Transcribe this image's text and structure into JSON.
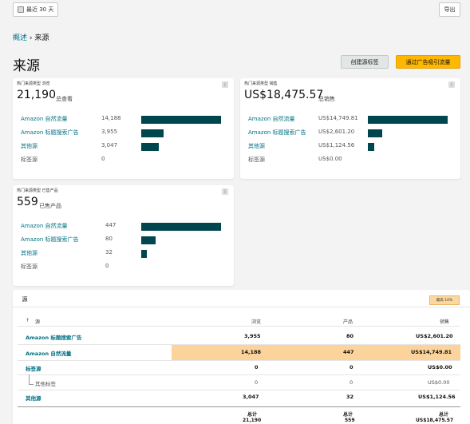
{
  "toolbar": {
    "date_range": "最近 30 天",
    "export": "导出"
  },
  "breadcrumb": {
    "parent": "概述",
    "separator": " › ",
    "current": "来源"
  },
  "page": {
    "title": "来源",
    "create_tag_button": "创建源标签",
    "ad_button": "通过广告吸引流量"
  },
  "card_views": {
    "label": "热门来源类型 浏览",
    "total": "21,190",
    "total_unit": "总查看",
    "rows": [
      {
        "label": "Amazon 自然流量",
        "value": "14,188",
        "fraction": 1.0
      },
      {
        "label": "Amazon 标题搜索广告",
        "value": "3,955",
        "fraction": 0.279
      },
      {
        "label": "其他源",
        "value": "3,047",
        "fraction": 0.215
      },
      {
        "label": "标签源",
        "value": "0",
        "fraction": 0
      }
    ]
  },
  "card_sales": {
    "label": "热门来源类型 销售",
    "total": "US$18,475.57",
    "total_unit": "总销售",
    "rows": [
      {
        "label": "Amazon 自然流量",
        "value": "US$14,749.81",
        "fraction": 1.0
      },
      {
        "label": "Amazon 标题搜索广告",
        "value": "US$2,601.20",
        "fraction": 0.176
      },
      {
        "label": "其他源",
        "value": "US$1,124.56",
        "fraction": 0.076
      },
      {
        "label": "标签源",
        "value": "US$0.00",
        "fraction": 0
      }
    ]
  },
  "card_products": {
    "label": "热门来源类型 已售产品",
    "total": "559",
    "total_unit": "已售产品",
    "rows": [
      {
        "label": "Amazon 自然流量",
        "value": "447",
        "fraction": 1.0
      },
      {
        "label": "Amazon 标题搜索广告",
        "value": "80",
        "fraction": 0.179
      },
      {
        "label": "其他源",
        "value": "32",
        "fraction": 0.072
      },
      {
        "label": "标签源",
        "value": "0",
        "fraction": 0
      }
    ]
  },
  "table": {
    "tab": "源",
    "badge": "最高 10%",
    "sort_icon": "↑",
    "headers": {
      "source": "源",
      "views": "浏览",
      "products": "产品",
      "sales": "销售"
    },
    "rows": [
      {
        "source": "Amazon 标题搜索广告",
        "views": "3,955",
        "products": "80",
        "sales": "US$2,601.20"
      },
      {
        "source": "Amazon 自然流量",
        "views": "14,188",
        "products": "447",
        "sales": "US$14,749.81"
      },
      {
        "source": "标签源",
        "views": "0",
        "products": "0",
        "sales": "US$0.00"
      },
      {
        "source": "其他标签",
        "views": "0",
        "products": "0",
        "sales": "US$0.00"
      },
      {
        "source": "其他源",
        "views": "3,047",
        "products": "32",
        "sales": "US$1,124.56"
      }
    ],
    "footer": {
      "label": "总计",
      "views": "21,190",
      "products": "559",
      "sales": "US$18,475.57"
    }
  },
  "colors": {
    "bar": "#00464f",
    "link": "#007185",
    "accent": "#ffb700",
    "highlight": "#fcd39a"
  }
}
